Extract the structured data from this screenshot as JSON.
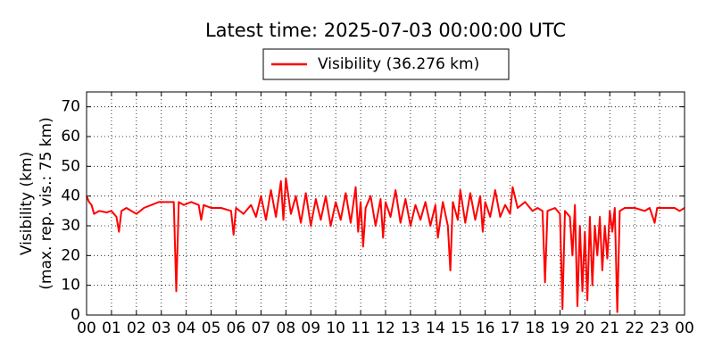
{
  "chart_data": {
    "type": "line",
    "title": "Latest time: 2025-07-03 00:00:00 UTC",
    "ylabel": [
      "Visibility (km)",
      "(max. rep. vis.: 75 km)"
    ],
    "x": [
      0,
      0.1,
      0.2,
      0.3,
      0.5,
      0.8,
      1.0,
      1.2,
      1.3,
      1.4,
      1.6,
      1.8,
      2.0,
      2.3,
      2.6,
      2.9,
      3.2,
      3.5,
      3.6,
      3.7,
      3.9,
      4.2,
      4.5,
      4.6,
      4.7,
      5.0,
      5.4,
      5.8,
      5.9,
      6.0,
      6.3,
      6.6,
      6.8,
      7.0,
      7.2,
      7.4,
      7.6,
      7.8,
      7.9,
      8.0,
      8.2,
      8.4,
      8.6,
      8.8,
      9.0,
      9.2,
      9.4,
      9.6,
      9.8,
      10.0,
      10.2,
      10.4,
      10.6,
      10.8,
      10.9,
      11.0,
      11.1,
      11.2,
      11.4,
      11.6,
      11.8,
      11.9,
      12.0,
      12.2,
      12.4,
      12.6,
      12.8,
      13.0,
      13.2,
      13.4,
      13.6,
      13.8,
      14.0,
      14.1,
      14.3,
      14.5,
      14.6,
      14.7,
      14.9,
      15.0,
      15.2,
      15.4,
      15.6,
      15.8,
      15.9,
      16.0,
      16.2,
      16.4,
      16.6,
      16.8,
      17.0,
      17.1,
      17.3,
      17.6,
      17.9,
      18.1,
      18.3,
      18.4,
      18.5,
      18.8,
      19.0,
      19.1,
      19.2,
      19.4,
      19.5,
      19.6,
      19.7,
      19.8,
      19.9,
      20.0,
      20.1,
      20.2,
      20.3,
      20.4,
      20.5,
      20.6,
      20.7,
      20.8,
      20.9,
      21.0,
      21.1,
      21.2,
      21.3,
      21.4,
      21.6,
      22.0,
      22.4,
      22.6,
      22.8,
      22.9,
      23.3,
      23.6,
      23.8,
      24.0
    ],
    "series": [
      {
        "name": "Visibility (36.276 km)",
        "color": "#ff0000",
        "values": [
          40,
          38,
          37,
          34,
          35,
          34.5,
          35,
          33,
          28,
          35,
          36,
          35,
          34,
          36,
          37,
          38,
          38,
          38,
          8,
          38,
          37,
          38,
          37,
          32,
          37,
          36,
          36,
          35,
          27,
          36,
          34,
          37,
          33,
          40,
          32,
          42,
          33,
          45,
          32,
          46,
          34,
          40,
          31,
          41,
          30,
          39,
          32,
          40,
          30,
          38,
          32,
          41,
          31,
          43,
          28,
          38,
          23,
          36,
          40,
          30,
          39,
          26,
          38,
          33,
          42,
          31,
          39,
          30,
          37,
          32,
          38,
          30,
          37,
          26,
          38,
          30,
          15,
          38,
          32,
          42,
          31,
          41,
          32,
          40,
          28,
          38,
          33,
          42,
          33,
          37,
          34,
          43,
          36,
          38,
          35,
          36,
          35,
          11,
          35,
          36,
          34,
          2,
          35,
          33,
          20,
          37,
          3,
          30,
          8,
          28,
          5,
          33,
          10,
          30,
          20,
          33,
          15,
          30,
          19,
          35,
          28,
          36,
          1,
          35,
          36,
          36,
          35,
          36,
          31,
          36,
          36,
          36,
          35,
          36
        ]
      }
    ],
    "xlim": [
      0,
      24
    ],
    "xticks": [
      {
        "value": 0,
        "label": "00"
      },
      {
        "value": 1,
        "label": "01"
      },
      {
        "value": 2,
        "label": "02"
      },
      {
        "value": 3,
        "label": "03"
      },
      {
        "value": 4,
        "label": "04"
      },
      {
        "value": 5,
        "label": "05"
      },
      {
        "value": 6,
        "label": "06"
      },
      {
        "value": 7,
        "label": "07"
      },
      {
        "value": 8,
        "label": "08"
      },
      {
        "value": 9,
        "label": "09"
      },
      {
        "value": 10,
        "label": "10"
      },
      {
        "value": 11,
        "label": "11"
      },
      {
        "value": 12,
        "label": "12"
      },
      {
        "value": 13,
        "label": "13"
      },
      {
        "value": 14,
        "label": "14"
      },
      {
        "value": 15,
        "label": "15"
      },
      {
        "value": 16,
        "label": "16"
      },
      {
        "value": 17,
        "label": "17"
      },
      {
        "value": 18,
        "label": "18"
      },
      {
        "value": 19,
        "label": "19"
      },
      {
        "value": 20,
        "label": "20"
      },
      {
        "value": 21,
        "label": "21"
      },
      {
        "value": 22,
        "label": "22"
      },
      {
        "value": 23,
        "label": "23"
      },
      {
        "value": 24,
        "label": "00"
      }
    ],
    "ylim": [
      0,
      75
    ],
    "yticks": [
      0,
      10,
      20,
      30,
      40,
      50,
      60,
      70
    ],
    "grid": true,
    "legend": "top"
  }
}
